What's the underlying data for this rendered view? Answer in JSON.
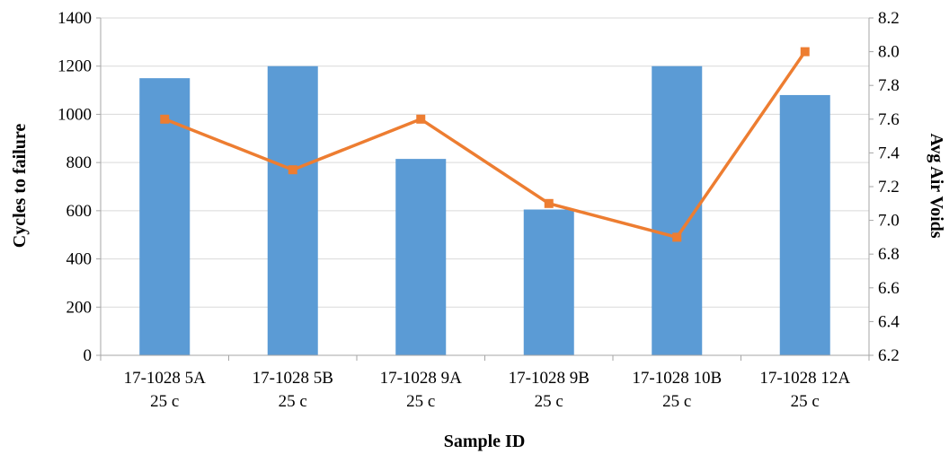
{
  "chart_data": {
    "type": "bar",
    "xlabel": "Sample ID",
    "ylabel": "Cycles to failure",
    "y2label": "Avg Air Voids",
    "categories": [
      [
        "17-1028 5A",
        "25 c"
      ],
      [
        "17-1028 5B",
        "25 c"
      ],
      [
        "17-1028 9A",
        "25 c"
      ],
      [
        "17-1028 9B",
        "25 c"
      ],
      [
        "17-1028 10B",
        "25 c"
      ],
      [
        "17-1028 12A",
        "25 c"
      ]
    ],
    "series": [
      {
        "type": "bar",
        "axis": "left",
        "values": [
          1150,
          1200,
          815,
          605,
          1200,
          1080
        ]
      },
      {
        "type": "line",
        "axis": "right",
        "marker": "square",
        "values": [
          7.6,
          7.3,
          7.6,
          7.1,
          6.9,
          8.0
        ]
      }
    ],
    "ylim": [
      0,
      1400
    ],
    "yticks": [
      0,
      200,
      400,
      600,
      800,
      1000,
      1200,
      1400
    ],
    "y2lim": [
      6.2,
      8.2
    ],
    "y2ticks": [
      "6.2",
      "6.4",
      "6.6",
      "6.8",
      "7.0",
      "7.2",
      "7.4",
      "7.6",
      "7.8",
      "8.0",
      "8.2"
    ],
    "grid": true,
    "legend": "none",
    "colors": {
      "bar": "#5b9bd5",
      "line": "#ed7d31",
      "grid": "#d9d9d9",
      "axis": "#a6a6a6"
    }
  }
}
